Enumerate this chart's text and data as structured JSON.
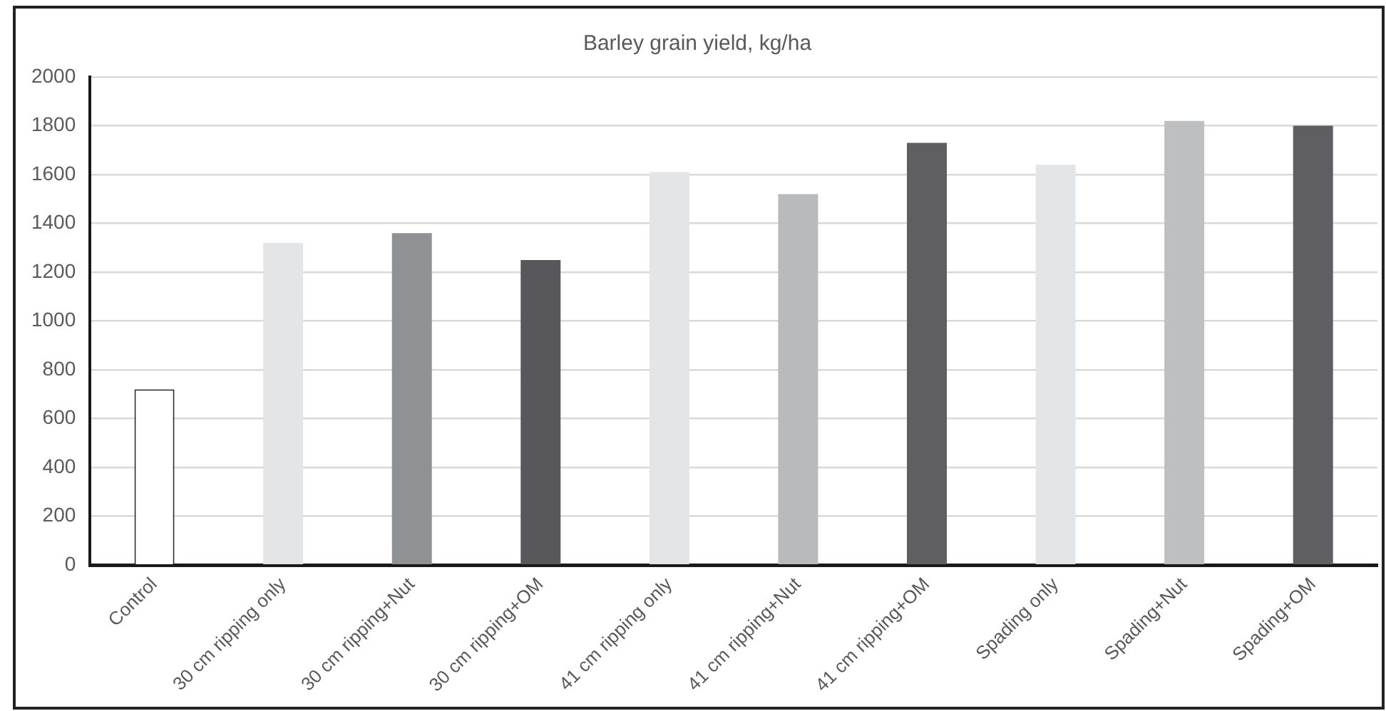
{
  "chart_data": {
    "type": "bar",
    "title": "Barley grain yield, kg/ha",
    "categories": [
      "Control",
      "30 cm ripping only",
      "30 cm ripping+Nut",
      "30 cm ripping+OM",
      "41 cm ripping only",
      "41 cm ripping+Nut",
      "41 cm ripping+OM",
      "Spading only",
      "Spading+Nut",
      "Spading+OM"
    ],
    "values": [
      720,
      1320,
      1360,
      1250,
      1610,
      1520,
      1730,
      1640,
      1820,
      1800
    ],
    "colors": [
      "#ffffff",
      "#e3e5e7",
      "#8f9194",
      "#58585c",
      "#e3e5e7",
      "#b8babc",
      "#5f5e62",
      "#e3e5e7",
      "#bdbfc1",
      "#5f5e62"
    ],
    "ylim": [
      0,
      2000
    ],
    "yticks": [
      0,
      200,
      400,
      600,
      800,
      1000,
      1200,
      1400,
      1600,
      1800,
      2000
    ],
    "grid": "y",
    "legend": false
  }
}
